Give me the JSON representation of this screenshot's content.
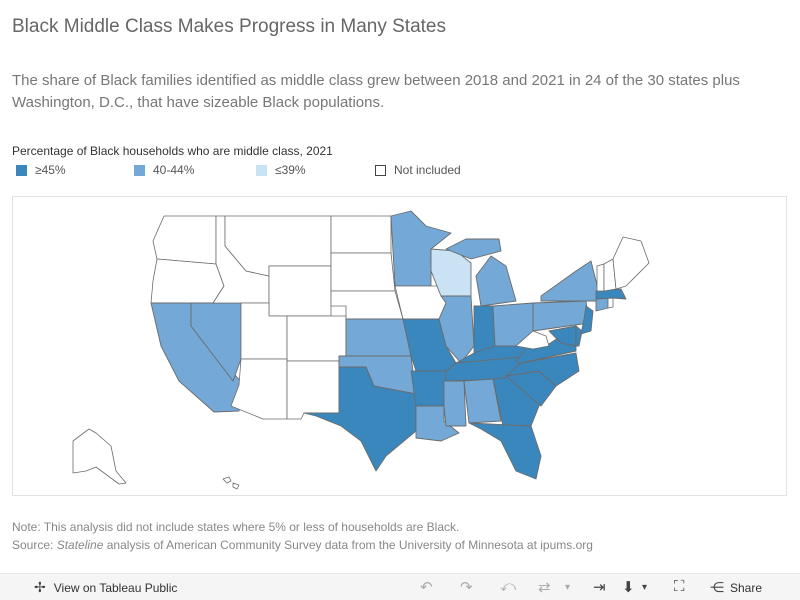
{
  "title": "Black Middle Class Makes Progress in Many States",
  "subtitle": "The share of Black families identified as middle class grew between 2018 and 2021 in 24 of the 30 states plus Washington, D.C., that have sizeable Black populations.",
  "legend": {
    "title": "Percentage of Black households who are middle class, 2021",
    "items": [
      {
        "label": "≥45%",
        "color": "#3a87bd"
      },
      {
        "label": "40-44%",
        "color": "#74a8d6"
      },
      {
        "label": "≤39%",
        "color": "#c9e2f4"
      },
      {
        "label": "Not included",
        "color": "#ffffff"
      }
    ]
  },
  "map": {
    "border_color": "#6b6b6b",
    "states": {
      "high": [
        "MO",
        "IN",
        "AR",
        "TN",
        "KY",
        "VA",
        "NC",
        "SC",
        "GA",
        "FL",
        "TX",
        "MA",
        "NJ",
        "DE",
        "MD",
        "DC"
      ],
      "mid": [
        "CA",
        "NV",
        "KS",
        "OK",
        "LA",
        "MS",
        "AL",
        "IL",
        "MI",
        "OH",
        "PA",
        "NY",
        "CT",
        "MN"
      ],
      "low": [
        "WI"
      ],
      "none": [
        "WA",
        "OR",
        "ID",
        "MT",
        "WY",
        "ND",
        "SD",
        "NE",
        "IA",
        "UT",
        "CO",
        "AZ",
        "NM",
        "AK",
        "HI",
        "ME",
        "NH",
        "VT",
        "RI",
        "WV"
      ]
    }
  },
  "note": {
    "line1": "Note: This analysis did not include states where 5% or less of households are Black.",
    "source_prefix": "Source:",
    "source_italic": "Stateline",
    "source_rest": "analysis of American Community Survey data from the University of Minnesota at ipums.org"
  },
  "toolbar": {
    "view_label": "View on Tableau Public",
    "share_label": "Share"
  }
}
